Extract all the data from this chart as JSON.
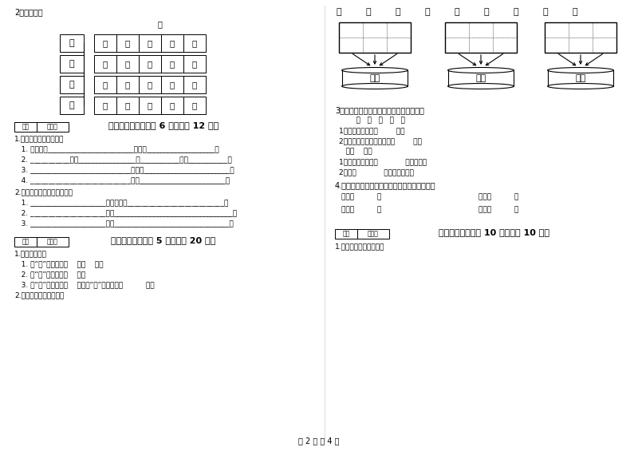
{
  "title": "2. 连一连。",
  "bg_color": "#ffffff",
  "left_words": [
    "远",
    "春",
    "人",
    "还"
  ],
  "right_sentences": [
    [
      "看",
      "山",
      "有",
      "色",
      "，"
    ],
    [
      "听",
      "水",
      "无",
      "声",
      "。"
    ],
    [
      "去",
      "花",
      "还",
      "在",
      "，"
    ],
    [
      "来",
      "鸟",
      "不",
      "惊",
      "。"
    ]
  ],
  "top_label": "组",
  "section5_title": "五、补充句子（每题 6 分，共计 12 分）",
  "section5_content": [
    "1.我会把句子补充完整。",
    "   1. 大家一边________________________，一边___________________，",
    "   2. ___________那么________________，___________那么___________，",
    "   3. ____________________________有一堆________________________，",
    "   4. ____________________________已经________________________，"
  ],
  "section5_content2": [
    "2.动动脑筋，把句子写完整。",
    "   1. _____________________十分用心地___________________________，",
    "   2. _____________________应该_________________________________，",
    "   3. _____________________怎么________________________________？"
  ],
  "section6_title": "六、综合题（每题 5 分，共计 20 分）",
  "section6_content": [
    "1.小小魔术师。",
    "   1. 给“一”加一笔是（    ）（    ）。",
    "   2. 给“木”加一笔是（    ）。",
    "   3. 给“十”加一笔是（    ），给“十”加两笔是（          ）。",
    "2.我能让花儿开得更美。"
  ],
  "right_top_chars": [
    "子",
    "无",
    "目",
    "也",
    "出",
    "公",
    "长",
    "头",
    "马"
  ],
  "bucket_labels": [
    "三画",
    "四画",
    "五画"
  ],
  "section3_title": "3.你能给下列括号里填上正确之字词吗？",
  "section3_words": "    鸣   呢   哼   吧   哦",
  "section3_items": [
    "1、这是怎么回事（        ）？",
    "2、小白兔，我们赶快回家（        ）！",
    "   到处    处处",
    "1、乌鸦口渴了，（            ）找水喝。",
    "2、他（            ）为别人着想。"
  ],
  "section4_title": "4.请在括号里写出下面植物是哪个季节开花的。",
  "section4_items": [
    [
      "杜花（          ）",
      "桃花（          ）"
    ],
    [
      "腊梅（          ）",
      "荷花（          ）"
    ]
  ],
  "section7_title": "七、阅读题（每题 10 分，共计 10 分）",
  "section7_content": "1.阅读短文，完成练习。",
  "footer": "第 2 页 共 4 页"
}
